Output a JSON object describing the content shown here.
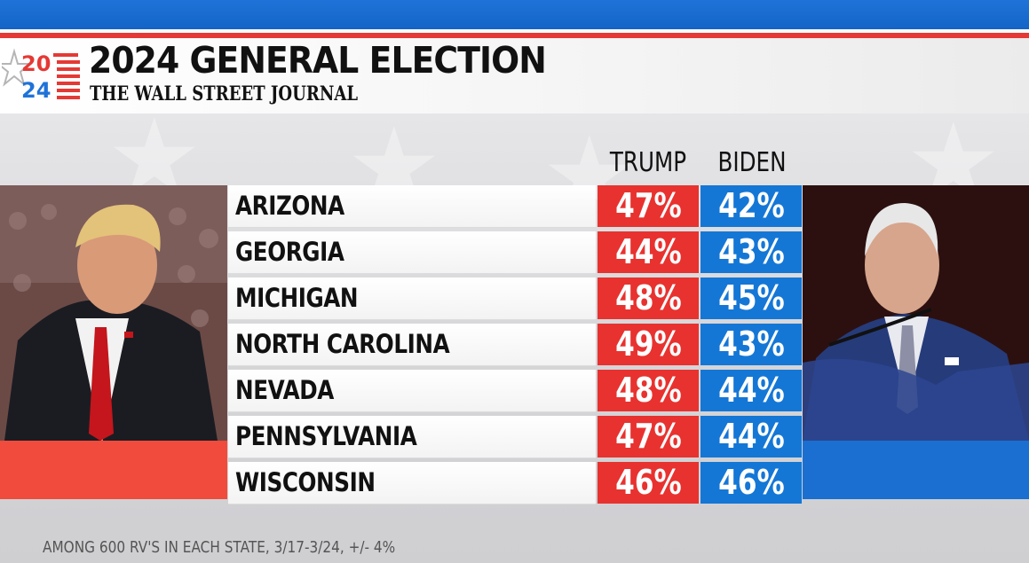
{
  "header": {
    "logo_top": "20",
    "logo_bottom": "24",
    "title": "2024 GENERAL ELECTION",
    "subtitle": "THE WALL STREET JOURNAL"
  },
  "colors": {
    "trump_red": "#e8322f",
    "biden_blue": "#1477d6",
    "top_bar_blue": "#1f73d8",
    "accent_red": "#e53935"
  },
  "columns": {
    "trump": "TRUMP",
    "biden": "BIDEN"
  },
  "chart_data": {
    "type": "table",
    "title": "2024 GENERAL ELECTION",
    "series": [
      {
        "name": "TRUMP",
        "values": [
          47,
          44,
          48,
          49,
          48,
          47,
          46
        ]
      },
      {
        "name": "BIDEN",
        "values": [
          42,
          43,
          45,
          43,
          44,
          44,
          46
        ]
      }
    ],
    "categories": [
      "ARIZONA",
      "GEORGIA",
      "MICHIGAN",
      "NORTH CAROLINA",
      "NEVADA",
      "PENNSYLVANIA",
      "WISCONSIN"
    ],
    "rows": [
      {
        "state": "ARIZONA",
        "trump": "47%",
        "biden": "42%"
      },
      {
        "state": "GEORGIA",
        "trump": "44%",
        "biden": "43%"
      },
      {
        "state": "MICHIGAN",
        "trump": "48%",
        "biden": "45%"
      },
      {
        "state": "NORTH CAROLINA",
        "trump": "49%",
        "biden": "43%"
      },
      {
        "state": "NEVADA",
        "trump": "48%",
        "biden": "44%"
      },
      {
        "state": "PENNSYLVANIA",
        "trump": "47%",
        "biden": "44%"
      },
      {
        "state": "WISCONSIN",
        "trump": "46%",
        "biden": "46%"
      }
    ]
  },
  "footnote": "AMONG 600 RV'S IN EACH STATE, 3/17-3/24, +/- 4%"
}
